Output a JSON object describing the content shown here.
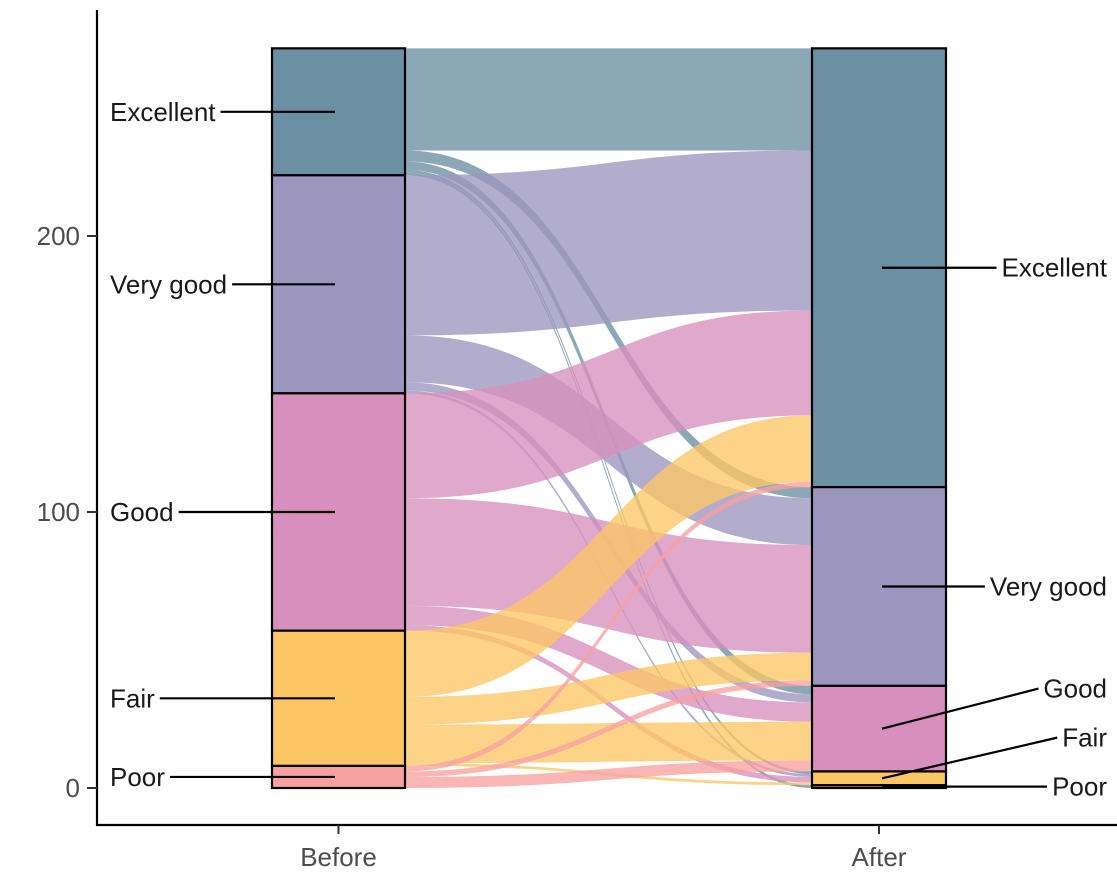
{
  "chart_data": {
    "type": "alluvial",
    "x_axis": [
      "Before",
      "After"
    ],
    "ylim": [
      0,
      270
    ],
    "y_ticks": [
      0,
      100,
      200
    ],
    "grid": false,
    "legend": "none",
    "categories": [
      "Excellent",
      "Very good",
      "Good",
      "Fair",
      "Poor"
    ],
    "colors": {
      "Excellent": "#6b8fa3",
      "Very good": "#9c96bf",
      "Good": "#d78fbd",
      "Fair": "#fdc665",
      "Poor": "#f7a2a0"
    },
    "stage_totals": {
      "Before": {
        "Excellent": 46,
        "Very good": 79,
        "Good": 86,
        "Fair": 49,
        "Poor": 8
      },
      "After": {
        "Excellent": 159,
        "Very good": 72,
        "Good": 31,
        "Fair": 5,
        "Poor": 1
      }
    },
    "flows": [
      {
        "from": "Excellent",
        "to": "Excellent",
        "value": 37
      },
      {
        "from": "Excellent",
        "to": "Very good",
        "value": 4
      },
      {
        "from": "Excellent",
        "to": "Good",
        "value": 3
      },
      {
        "from": "Excellent",
        "to": "Fair",
        "value": 1
      },
      {
        "from": "Excellent",
        "to": "Poor",
        "value": 1
      },
      {
        "from": "Very good",
        "to": "Excellent",
        "value": 58
      },
      {
        "from": "Very good",
        "to": "Very good",
        "value": 17
      },
      {
        "from": "Very good",
        "to": "Good",
        "value": 3
      },
      {
        "from": "Very good",
        "to": "Fair",
        "value": 1
      },
      {
        "from": "Good",
        "to": "Excellent",
        "value": 38
      },
      {
        "from": "Good",
        "to": "Very good",
        "value": 39
      },
      {
        "from": "Good",
        "to": "Good",
        "value": 7
      },
      {
        "from": "Good",
        "to": "Fair",
        "value": 2
      },
      {
        "from": "Fair",
        "to": "Excellent",
        "value": 24
      },
      {
        "from": "Fair",
        "to": "Very good",
        "value": 10
      },
      {
        "from": "Fair",
        "to": "Good",
        "value": 14
      },
      {
        "from": "Fair",
        "to": "Fair",
        "value": 1
      },
      {
        "from": "Poor",
        "to": "Excellent",
        "value": 2
      },
      {
        "from": "Poor",
        "to": "Very good",
        "value": 2
      },
      {
        "from": "Poor",
        "to": "Good",
        "value": 4
      }
    ]
  }
}
